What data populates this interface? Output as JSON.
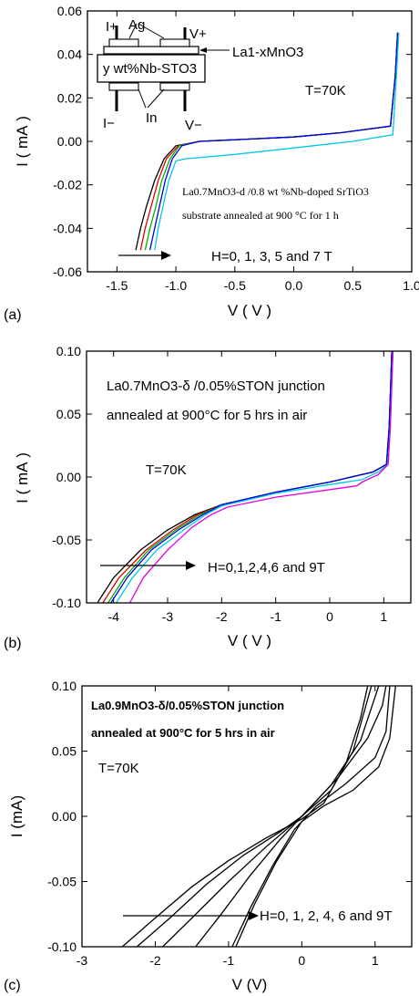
{
  "colors": {
    "black": "#000000",
    "red": "#e00000",
    "green": "#00b000",
    "blue": "#0000e0",
    "cyan": "#00c8e8",
    "magenta": "#e000e0"
  },
  "chart_data": [
    {
      "panel_label": "(a)",
      "type": "line",
      "xlabel": "V ( V )",
      "ylabel": "I ( mA )",
      "xlim": [
        -1.75,
        1.0
      ],
      "ylim": [
        -0.06,
        0.06
      ],
      "xticks": [
        "-1.5",
        "-1.0",
        "-0.5",
        "0.0",
        "0.5",
        "1.0"
      ],
      "yticks": [
        "-0.06",
        "-0.04",
        "-0.02",
        "0.00",
        "0.02",
        "0.04",
        "0.06"
      ],
      "annotations": {
        "temp": "T=70K",
        "sample1": "La0.7MnO3-d /0.8 wt %Nb-doped SrTiO3",
        "sample2": "substrate annealed at 900 °C for 1 h",
        "field": "H=0, 1, 3, 5 and 7 T",
        "inset_ag": "Ag",
        "inset_iplus": "I+",
        "inset_vplus": "V+",
        "inset_lmo": "La1-xMnO3",
        "inset_sto": "y wt%Nb-STO3",
        "inset_iminus": "I−",
        "inset_in": "In",
        "inset_vminus": "V−"
      },
      "series": [
        {
          "color": "#000000",
          "points": [
            [
              -1.34,
              -0.05
            ],
            [
              -1.3,
              -0.04
            ],
            [
              -1.25,
              -0.03
            ],
            [
              -1.18,
              -0.018
            ],
            [
              -1.1,
              -0.008
            ],
            [
              -1.0,
              -0.002
            ],
            [
              -0.8,
              0.0
            ],
            [
              -0.4,
              0.001
            ],
            [
              0.0,
              0.002
            ],
            [
              0.4,
              0.004
            ],
            [
              0.82,
              0.007
            ],
            [
              0.86,
              0.03
            ],
            [
              0.88,
              0.05
            ]
          ]
        },
        {
          "color": "#e00000",
          "points": [
            [
              -1.3,
              -0.05
            ],
            [
              -1.26,
              -0.04
            ],
            [
              -1.21,
              -0.03
            ],
            [
              -1.15,
              -0.018
            ],
            [
              -1.08,
              -0.008
            ],
            [
              -0.98,
              -0.002
            ],
            [
              -0.8,
              0.0
            ],
            [
              -0.4,
              0.001
            ],
            [
              0.0,
              0.002
            ],
            [
              0.4,
              0.004
            ],
            [
              0.82,
              0.007
            ],
            [
              0.86,
              0.03
            ],
            [
              0.88,
              0.05
            ]
          ]
        },
        {
          "color": "#00b000",
          "points": [
            [
              -1.26,
              -0.05
            ],
            [
              -1.22,
              -0.04
            ],
            [
              -1.17,
              -0.03
            ],
            [
              -1.12,
              -0.018
            ],
            [
              -1.05,
              -0.008
            ],
            [
              -0.97,
              -0.002
            ],
            [
              -0.8,
              0.0
            ],
            [
              -0.4,
              0.001
            ],
            [
              0.0,
              0.002
            ],
            [
              0.4,
              0.004
            ],
            [
              0.82,
              0.007
            ],
            [
              0.86,
              0.03
            ],
            [
              0.88,
              0.05
            ]
          ]
        },
        {
          "color": "#0000e0",
          "points": [
            [
              -1.22,
              -0.05
            ],
            [
              -1.18,
              -0.04
            ],
            [
              -1.14,
              -0.03
            ],
            [
              -1.09,
              -0.018
            ],
            [
              -1.03,
              -0.008
            ],
            [
              -0.95,
              -0.002
            ],
            [
              -0.8,
              0.0
            ],
            [
              -0.4,
              0.001
            ],
            [
              0.0,
              0.002
            ],
            [
              0.4,
              0.004
            ],
            [
              0.82,
              0.007
            ],
            [
              0.86,
              0.03
            ],
            [
              0.88,
              0.05
            ]
          ]
        },
        {
          "color": "#00c8e8",
          "points": [
            [
              -1.18,
              -0.05
            ],
            [
              -1.15,
              -0.04
            ],
            [
              -1.11,
              -0.03
            ],
            [
              -1.06,
              -0.018
            ],
            [
              -1.0,
              -0.009
            ],
            [
              -0.92,
              -0.008
            ],
            [
              -0.5,
              -0.006
            ],
            [
              0.0,
              -0.003
            ],
            [
              0.5,
              0.0
            ],
            [
              0.84,
              0.003
            ],
            [
              0.87,
              0.03
            ],
            [
              0.89,
              0.05
            ]
          ]
        }
      ]
    },
    {
      "panel_label": "(b)",
      "type": "line",
      "xlabel": "V ( V )",
      "ylabel": "I ( mA )",
      "xlim": [
        -4.5,
        1.5
      ],
      "ylim": [
        -0.1,
        0.1
      ],
      "xticks": [
        "-4",
        "-3",
        "-2",
        "-1",
        "0",
        "1"
      ],
      "yticks": [
        "-0.10",
        "-0.05",
        "0.00",
        "0.05",
        "0.10"
      ],
      "annotations": {
        "title1": "La0.7MnO3-δ /0.05%STON junction",
        "title2": "annealed at 900°C for 5 hrs in air",
        "temp": "T=70K",
        "field": "H=0,1,2,4,6 and 9T"
      },
      "series": [
        {
          "color": "#000000",
          "points": [
            [
              -4.3,
              -0.1
            ],
            [
              -4.0,
              -0.08
            ],
            [
              -3.5,
              -0.058
            ],
            [
              -3.0,
              -0.042
            ],
            [
              -2.5,
              -0.03
            ],
            [
              -2.0,
              -0.022
            ],
            [
              -1.0,
              -0.012
            ],
            [
              0.0,
              -0.004
            ],
            [
              0.8,
              0.004
            ],
            [
              1.05,
              0.01
            ],
            [
              1.1,
              0.04
            ],
            [
              1.15,
              0.1
            ]
          ]
        },
        {
          "color": "#e00000",
          "points": [
            [
              -4.2,
              -0.1
            ],
            [
              -3.9,
              -0.08
            ],
            [
              -3.4,
              -0.058
            ],
            [
              -2.9,
              -0.042
            ],
            [
              -2.45,
              -0.03
            ],
            [
              -2.0,
              -0.022
            ],
            [
              -1.0,
              -0.012
            ],
            [
              0.0,
              -0.004
            ],
            [
              0.8,
              0.004
            ],
            [
              1.05,
              0.01
            ],
            [
              1.1,
              0.04
            ],
            [
              1.15,
              0.1
            ]
          ]
        },
        {
          "color": "#00b000",
          "points": [
            [
              -4.1,
              -0.1
            ],
            [
              -3.8,
              -0.08
            ],
            [
              -3.35,
              -0.058
            ],
            [
              -2.85,
              -0.042
            ],
            [
              -2.4,
              -0.03
            ],
            [
              -2.0,
              -0.022
            ],
            [
              -1.0,
              -0.012
            ],
            [
              0.0,
              -0.004
            ],
            [
              0.8,
              0.004
            ],
            [
              1.05,
              0.01
            ],
            [
              1.1,
              0.04
            ],
            [
              1.15,
              0.1
            ]
          ]
        },
        {
          "color": "#0000e0",
          "points": [
            [
              -4.05,
              -0.1
            ],
            [
              -3.75,
              -0.08
            ],
            [
              -3.3,
              -0.058
            ],
            [
              -2.8,
              -0.042
            ],
            [
              -2.35,
              -0.03
            ],
            [
              -2.0,
              -0.022
            ],
            [
              -1.0,
              -0.012
            ],
            [
              0.0,
              -0.004
            ],
            [
              0.8,
              0.004
            ],
            [
              1.05,
              0.01
            ],
            [
              1.1,
              0.04
            ],
            [
              1.15,
              0.1
            ]
          ]
        },
        {
          "color": "#00c8e8",
          "points": [
            [
              -3.95,
              -0.1
            ],
            [
              -3.65,
              -0.08
            ],
            [
              -3.2,
              -0.058
            ],
            [
              -2.7,
              -0.042
            ],
            [
              -2.3,
              -0.03
            ],
            [
              -2.0,
              -0.023
            ],
            [
              -1.0,
              -0.013
            ],
            [
              0.0,
              -0.006
            ],
            [
              0.6,
              -0.002
            ],
            [
              0.9,
              0.004
            ],
            [
              1.08,
              0.01
            ],
            [
              1.12,
              0.04
            ],
            [
              1.17,
              0.1
            ]
          ]
        },
        {
          "color": "#e000e0",
          "points": [
            [
              -3.7,
              -0.1
            ],
            [
              -3.45,
              -0.08
            ],
            [
              -3.0,
              -0.058
            ],
            [
              -2.55,
              -0.04
            ],
            [
              -2.2,
              -0.03
            ],
            [
              -1.9,
              -0.024
            ],
            [
              -1.0,
              -0.016
            ],
            [
              0.0,
              -0.01
            ],
            [
              0.5,
              -0.007
            ],
            [
              0.6,
              -0.004
            ],
            [
              0.9,
              0.002
            ],
            [
              1.08,
              0.01
            ],
            [
              1.12,
              0.04
            ],
            [
              1.17,
              0.1
            ]
          ]
        }
      ]
    },
    {
      "panel_label": "(c)",
      "type": "line",
      "xlabel": "V (V)",
      "ylabel": "I (mA)",
      "xlim": [
        -3,
        1.5
      ],
      "ylim": [
        -0.1,
        0.1
      ],
      "xticks": [
        "-3",
        "-2",
        "-1",
        "0",
        "1"
      ],
      "yticks": [
        "-0.10",
        "-0.05",
        "0.00",
        "0.05",
        "0.10"
      ],
      "annotations": {
        "title1": "La0.9MnO3-δ/0.05%STON junction",
        "title2": "annealed at 900°C for 5 hrs in air",
        "temp": "T=70K",
        "field": "H=0, 1, 2, 4, 6 and 9T"
      },
      "series": [
        {
          "color": "#000000",
          "points": [
            [
              -2.45,
              -0.1
            ],
            [
              -2.0,
              -0.078
            ],
            [
              -1.5,
              -0.054
            ],
            [
              -1.0,
              -0.034
            ],
            [
              -0.5,
              -0.017
            ],
            [
              0.0,
              -0.002
            ],
            [
              0.3,
              0.01
            ],
            [
              0.6,
              0.04
            ],
            [
              0.8,
              0.075
            ],
            [
              0.9,
              0.1
            ]
          ]
        },
        {
          "color": "#000000",
          "points": [
            [
              -2.25,
              -0.1
            ],
            [
              -1.8,
              -0.078
            ],
            [
              -1.3,
              -0.052
            ],
            [
              -0.8,
              -0.03
            ],
            [
              -0.3,
              -0.012
            ],
            [
              0.0,
              0.0
            ],
            [
              0.4,
              0.02
            ],
            [
              0.7,
              0.05
            ],
            [
              0.95,
              0.1
            ]
          ]
        },
        {
          "color": "#000000",
          "points": [
            [
              -1.9,
              -0.1
            ],
            [
              -1.5,
              -0.078
            ],
            [
              -1.0,
              -0.05
            ],
            [
              -0.5,
              -0.024
            ],
            [
              0.0,
              0.0
            ],
            [
              0.4,
              0.024
            ],
            [
              0.8,
              0.058
            ],
            [
              1.05,
              0.1
            ]
          ]
        },
        {
          "color": "#000000",
          "points": [
            [
              -1.45,
              -0.1
            ],
            [
              -1.1,
              -0.075
            ],
            [
              -0.7,
              -0.045
            ],
            [
              -0.3,
              -0.018
            ],
            [
              0.0,
              0.0
            ],
            [
              0.5,
              0.03
            ],
            [
              0.9,
              0.06
            ],
            [
              1.1,
              0.085
            ],
            [
              1.15,
              0.1
            ]
          ]
        },
        {
          "color": "#000000",
          "points": [
            [
              -0.95,
              -0.1
            ],
            [
              -0.7,
              -0.07
            ],
            [
              -0.4,
              -0.038
            ],
            [
              -0.1,
              -0.01
            ],
            [
              0.2,
              0.008
            ],
            [
              0.6,
              0.025
            ],
            [
              1.0,
              0.045
            ],
            [
              1.15,
              0.065
            ],
            [
              1.2,
              0.1
            ]
          ]
        },
        {
          "color": "#000000",
          "points": [
            [
              -0.9,
              -0.1
            ],
            [
              -0.65,
              -0.068
            ],
            [
              -0.35,
              -0.035
            ],
            [
              0.0,
              -0.004
            ],
            [
              0.3,
              0.008
            ],
            [
              0.7,
              0.02
            ],
            [
              1.05,
              0.038
            ],
            [
              1.2,
              0.06
            ],
            [
              1.28,
              0.1
            ]
          ]
        }
      ]
    }
  ]
}
